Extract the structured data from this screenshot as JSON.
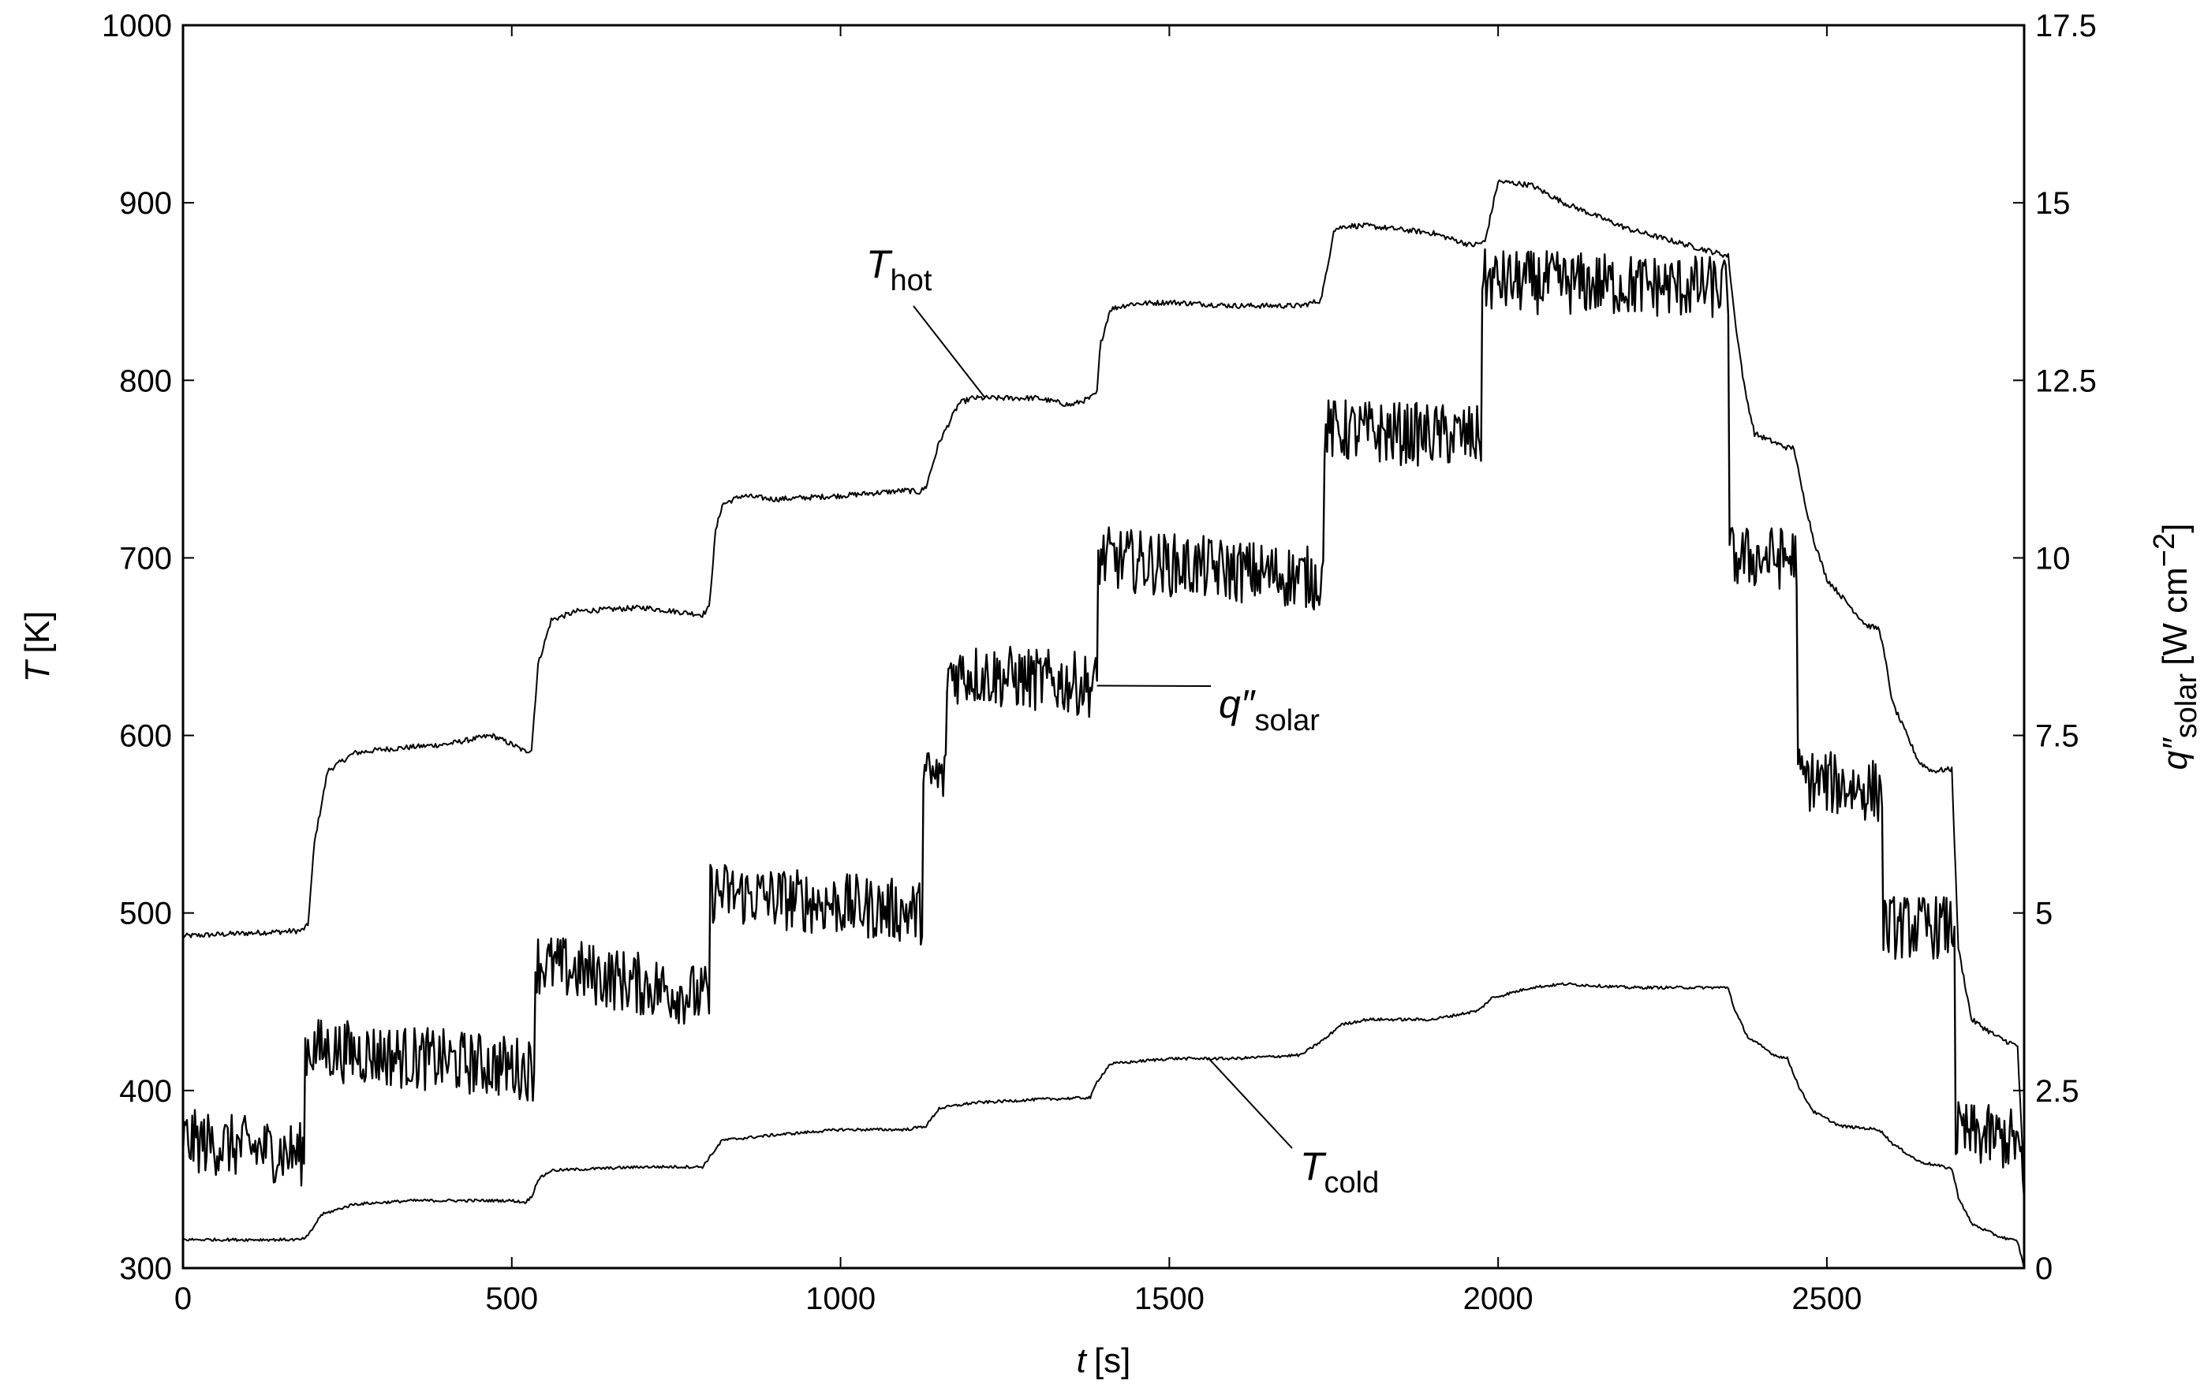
{
  "chart_data": {
    "type": "line",
    "title": "",
    "xlabel": {
      "symbol": "t",
      "unit": "[s]"
    },
    "ylabel_left": {
      "symbol": "T",
      "unit": "[K]"
    },
    "ylabel_right": {
      "symbol": "q″",
      "subscript": "solar",
      "unit_prefix": "[W cm",
      "unit_exp": "−2",
      "unit_suffix": "]"
    },
    "xlim": [
      0,
      2800
    ],
    "ylim_left": [
      300,
      1000
    ],
    "ylim_right": [
      0,
      17.5
    ],
    "xticks": [
      "0",
      "500",
      "1000",
      "1500",
      "2000",
      "2500"
    ],
    "yticks_left": [
      "300",
      "400",
      "500",
      "600",
      "700",
      "800",
      "900",
      "1000"
    ],
    "yticks_right": [
      "0",
      "2.5",
      "5",
      "7.5",
      "10",
      "12.5",
      "15",
      "17.5"
    ],
    "grid": false,
    "legend": "none",
    "annotations": [
      {
        "symbol": "T",
        "subscript": "hot",
        "points_to_series": "T_hot"
      },
      {
        "symbol": "q″",
        "subscript": "solar",
        "points_to_series": "q_solar"
      },
      {
        "symbol": "T",
        "subscript": "cold",
        "points_to_series": "T_cold"
      }
    ],
    "series": [
      {
        "id": "T_hot",
        "axis": "left",
        "noise": 1.5,
        "x": [
          0,
          180,
          190,
          200,
          220,
          260,
          300,
          400,
          470,
          500,
          520,
          530,
          540,
          560,
          600,
          700,
          790,
          800,
          810,
          820,
          850,
          900,
          1000,
          1100,
          1120,
          1130,
          1150,
          1180,
          1200,
          1300,
          1350,
          1380,
          1390,
          1395,
          1410,
          1440,
          1500,
          1600,
          1700,
          1730,
          1740,
          1750,
          1770,
          1800,
          1900,
          1960,
          1980,
          1990,
          2000,
          2050,
          2100,
          2200,
          2300,
          2350,
          2360,
          2375,
          2390,
          2420,
          2440,
          2450,
          2460,
          2480,
          2500,
          2560,
          2580,
          2590,
          2600,
          2640,
          2660,
          2690,
          2700,
          2720,
          2760,
          2790,
          2800
        ],
        "y": [
          487,
          490,
          493,
          540,
          580,
          590,
          592,
          595,
          600,
          595,
          591,
          592,
          640,
          665,
          670,
          672,
          668,
          672,
          715,
          730,
          735,
          733,
          735,
          738,
          737,
          740,
          765,
          787,
          790,
          790,
          786,
          790,
          793,
          820,
          840,
          843,
          844,
          842,
          842,
          845,
          862,
          885,
          887,
          887,
          883,
          876,
          878,
          895,
          912,
          910,
          900,
          885,
          875,
          870,
          835,
          795,
          770,
          765,
          762,
          762,
          742,
          710,
          688,
          662,
          660,
          640,
          618,
          585,
          580,
          581,
          480,
          440,
          430,
          425,
          345
        ]
      },
      {
        "id": "q_solar",
        "axis": "right",
        "noise": 0.45,
        "x": [
          0,
          185,
          186,
          535,
          536,
          800,
          801,
          1125,
          1126,
          1160,
          1161,
          1390,
          1391,
          1735,
          1736,
          1975,
          1976,
          2350,
          2351,
          2455,
          2456,
          2585,
          2586,
          2695,
          2696,
          2790,
          2800
        ],
        "y": [
          1.8,
          1.6,
          3.1,
          2.8,
          4.3,
          3.8,
          5.3,
          5.0,
          6.9,
          6.9,
          8.4,
          8.2,
          10.0,
          9.7,
          11.8,
          11.7,
          13.9,
          13.8,
          10.0,
          10.0,
          6.9,
          6.7,
          4.8,
          4.8,
          1.9,
          1.8,
          1.0
        ]
      },
      {
        "id": "T_cold",
        "axis": "left",
        "noise": 0.8,
        "x": [
          0,
          180,
          190,
          210,
          260,
          350,
          500,
          520,
          530,
          540,
          560,
          700,
          790,
          800,
          820,
          900,
          1000,
          1100,
          1130,
          1150,
          1200,
          1300,
          1380,
          1390,
          1410,
          1500,
          1600,
          1700,
          1740,
          1760,
          1800,
          1900,
          1970,
          1990,
          2050,
          2100,
          2200,
          2300,
          2350,
          2360,
          2380,
          2420,
          2440,
          2460,
          2480,
          2520,
          2580,
          2600,
          2640,
          2690,
          2700,
          2720,
          2760,
          2790,
          2800
        ],
        "y": [
          316,
          316,
          318,
          330,
          336,
          338,
          338,
          337,
          340,
          350,
          355,
          357,
          357,
          362,
          372,
          375,
          378,
          378,
          380,
          390,
          393,
          395,
          396,
          405,
          415,
          418,
          418,
          420,
          430,
          437,
          440,
          440,
          445,
          452,
          458,
          460,
          458,
          458,
          458,
          445,
          430,
          420,
          418,
          400,
          388,
          380,
          378,
          370,
          360,
          356,
          340,
          325,
          318,
          315,
          300
        ]
      }
    ]
  }
}
